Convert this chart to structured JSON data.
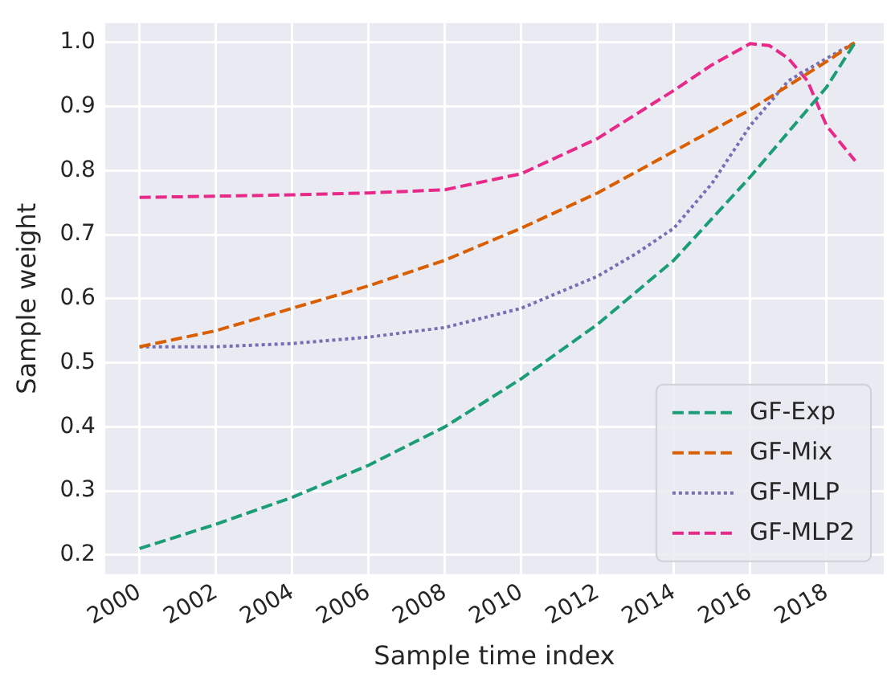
{
  "chart_data": {
    "type": "line",
    "xlabel": "Sample time index",
    "ylabel": "Sample weight",
    "xlim": [
      1999.1,
      2019.5
    ],
    "xticks": [
      2000,
      2002,
      2004,
      2006,
      2008,
      2010,
      2012,
      2014,
      2016,
      2018
    ],
    "ylim": [
      0.17,
      1.03
    ],
    "yticks": [
      {
        "value": 0.2,
        "label": "0.2"
      },
      {
        "value": 0.3,
        "label": "0.3"
      },
      {
        "value": 0.4,
        "label": "0.4"
      },
      {
        "value": 0.5,
        "label": "0.5"
      },
      {
        "value": 0.6,
        "label": "0.6"
      },
      {
        "value": 0.7,
        "label": "0.7"
      },
      {
        "value": 0.8,
        "label": "0.8"
      },
      {
        "value": 0.9,
        "label": "0.9"
      },
      {
        "value": 1.0,
        "label": "1.0"
      }
    ],
    "grid": true,
    "legend": "bottom right",
    "marker": "none",
    "series": [
      {
        "name": "GF-Exp",
        "color": "#1b9e77",
        "line_style": "dashed",
        "x": [
          2000,
          2002,
          2004,
          2006,
          2008,
          2010,
          2012,
          2014,
          2016,
          2017,
          2018,
          2018.75
        ],
        "values": [
          0.21,
          0.248,
          0.29,
          0.34,
          0.4,
          0.475,
          0.56,
          0.66,
          0.79,
          0.86,
          0.93,
          1.0
        ]
      },
      {
        "name": "GF-Mix",
        "color": "#d95f02",
        "line_style": "dashed",
        "x": [
          2000,
          2002,
          2004,
          2006,
          2008,
          2010,
          2012,
          2014,
          2016,
          2018,
          2018.75
        ],
        "values": [
          0.525,
          0.55,
          0.585,
          0.62,
          0.66,
          0.71,
          0.765,
          0.83,
          0.895,
          0.97,
          1.0
        ]
      },
      {
        "name": "GF-MLP",
        "color": "#7570b3",
        "line_style": "dotted",
        "x": [
          2000,
          2002,
          2004,
          2006,
          2008,
          2010,
          2012,
          2013,
          2014,
          2015,
          2016,
          2017,
          2018,
          2018.75
        ],
        "values": [
          0.525,
          0.525,
          0.53,
          0.54,
          0.555,
          0.585,
          0.635,
          0.67,
          0.71,
          0.78,
          0.87,
          0.94,
          0.975,
          1.0
        ]
      },
      {
        "name": "GF-MLP2",
        "color": "#e7298a",
        "line_style": "dashed",
        "x": [
          2000,
          2002,
          2004,
          2006,
          2008,
          2010,
          2012,
          2014,
          2015,
          2016,
          2016.5,
          2017,
          2017.5,
          2018,
          2018.75
        ],
        "values": [
          0.758,
          0.76,
          0.762,
          0.765,
          0.77,
          0.795,
          0.85,
          0.925,
          0.965,
          0.998,
          0.995,
          0.975,
          0.94,
          0.87,
          0.815
        ]
      }
    ]
  }
}
